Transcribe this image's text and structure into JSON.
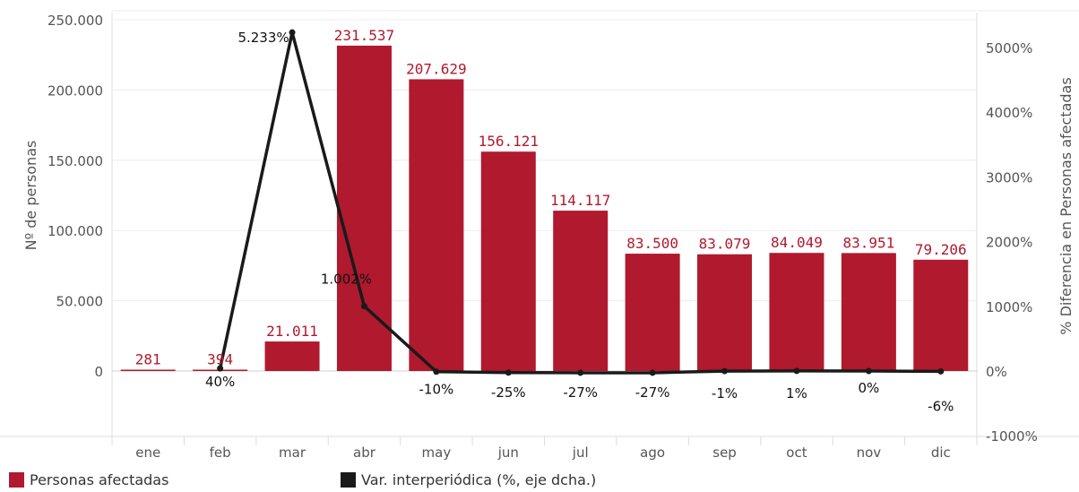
{
  "chart_data": {
    "type": "bar",
    "categories": [
      "ene",
      "feb",
      "mar",
      "abr",
      "may",
      "jun",
      "jul",
      "ago",
      "sep",
      "oct",
      "nov",
      "dic"
    ],
    "series": [
      {
        "name": "Personas afectadas",
        "type": "bar",
        "axis": "left",
        "values": [
          281,
          394,
          21011,
          231537,
          207629,
          156121,
          114117,
          83500,
          83079,
          84049,
          83951,
          79206
        ],
        "labels": [
          "281",
          "394",
          "21.011",
          "231.537",
          "207.629",
          "156.121",
          "114.117",
          "83.500",
          "83.079",
          "84.049",
          "83.951",
          "79.206"
        ]
      },
      {
        "name": "Var. interperiódica (%, eje dcha.)",
        "type": "line",
        "axis": "right",
        "values": [
          null,
          40,
          5233,
          1002,
          -10,
          -25,
          -27,
          -27,
          -1,
          1,
          0,
          -6
        ],
        "labels": [
          "",
          "40%",
          "5.233%",
          "1.002%",
          "-10%",
          "-25%",
          "-27%",
          "-27%",
          "-1%",
          "1%",
          "0%",
          "-6%"
        ]
      }
    ],
    "ylabel": "Nº de personas",
    "y2label": "% Diferencia en Personas afectadas",
    "ylim": [
      -57500,
      250000
    ],
    "y2lim": [
      -1000,
      5000
    ],
    "yticks": [
      0,
      50000,
      100000,
      150000,
      200000,
      250000
    ],
    "yticklabels": [
      "0",
      "50.000",
      "100.000",
      "150.000",
      "200.000",
      "250.000"
    ],
    "y2ticks": [
      -1000,
      0,
      1000,
      2000,
      3000,
      4000,
      5000
    ],
    "y2ticklabels": [
      "-1000%",
      "0%",
      "1000%",
      "2000%",
      "3000%",
      "4000%",
      "5000%"
    ],
    "grid": true,
    "legend": "bottom-left",
    "colors": {
      "bar": "#b0192e",
      "line": "#1a1a1a",
      "barLabel": "#b0192e"
    }
  },
  "legend": {
    "bar_label": "Personas afectadas",
    "line_label": "Var. interperiódica (%, eje dcha.)"
  }
}
